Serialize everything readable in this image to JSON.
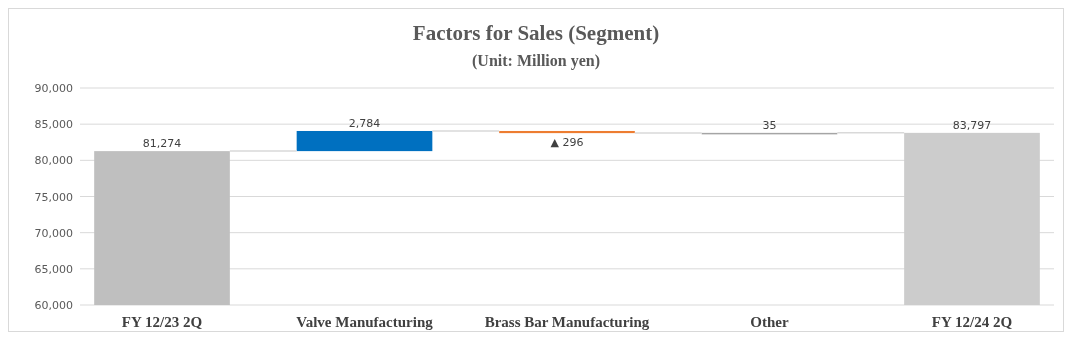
{
  "chart_data": {
    "type": "bar",
    "title": "Factors for Sales (Segment)",
    "subtitle": "(Unit: Million yen)",
    "categories": [
      "FY 12/23 2Q",
      "Valve Manufacturing",
      "Brass Bar Manufacturing",
      "Other",
      "FY 12/24 2Q"
    ],
    "values": [
      81274,
      2784,
      -296,
      35,
      83797
    ],
    "base": [
      null,
      81274,
      84058,
      83762,
      null
    ],
    "colors": [
      "#bfbfbf",
      "#0070c0",
      "#ed7d31",
      "#a5a5a5",
      "#cccccc"
    ],
    "value_labels": [
      "81,274",
      "2,784",
      "▲ 296",
      "35",
      "83,797"
    ],
    "ylim": [
      60000,
      90000
    ],
    "yticks": [
      {
        "value": 60000,
        "label": "60,000"
      },
      {
        "value": 65000,
        "label": "65,000"
      },
      {
        "value": 70000,
        "label": "70,000"
      },
      {
        "value": 75000,
        "label": "75,000"
      },
      {
        "value": 80000,
        "label": "80,000"
      },
      {
        "value": 85000,
        "label": "85,000"
      },
      {
        "value": 90000,
        "label": "90,000"
      }
    ],
    "grid": "y"
  }
}
